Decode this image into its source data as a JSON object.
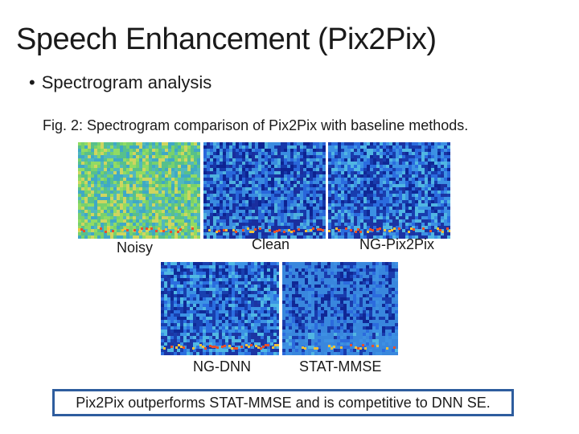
{
  "slide": {
    "title": "Speech Enhancement (Pix2Pix)",
    "bullet": "Spectrogram analysis",
    "caption": "Fig. 2: Spectrogram comparison of Pix2Pix with baseline methods.",
    "callout": "Pix2Pix outperforms STAT-MMSE and is competitive to DNN SE."
  },
  "figure": {
    "spectrograms": [
      {
        "label": "Noisy",
        "base_color": "#5fbf7a"
      },
      {
        "label": "Clean",
        "base_color": "#1c3fb5"
      },
      {
        "label": "NG-Pix2Pix",
        "base_color": "#2a5ed0"
      },
      {
        "label": "NG-DNN",
        "base_color": "#2b6fd8"
      },
      {
        "label": "STAT-MMSE",
        "base_color": "#2f58c8"
      }
    ]
  },
  "colors": {
    "callout_border": "#2e5d9e"
  }
}
